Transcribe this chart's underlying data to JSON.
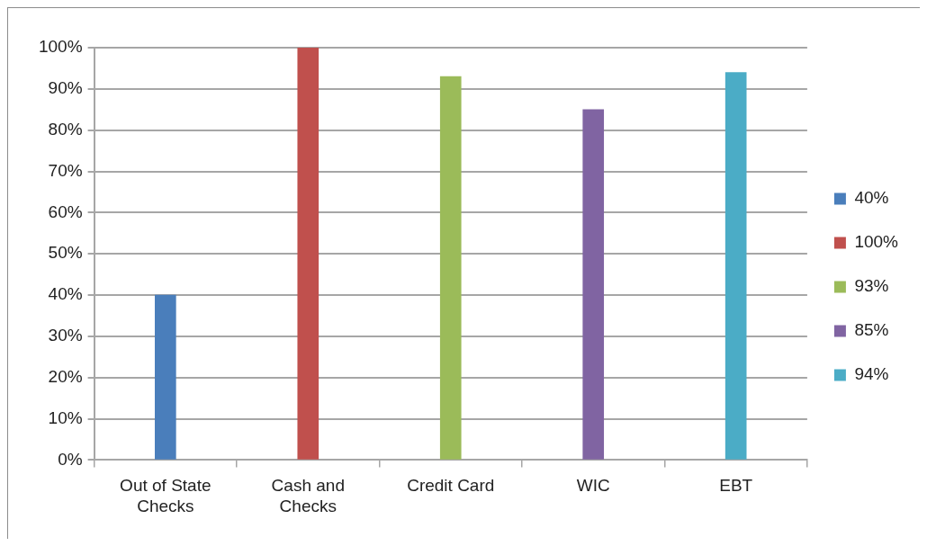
{
  "chart_data": {
    "type": "bar",
    "categories": [
      "Out of State Checks",
      "Cash and Checks",
      "Credit Card",
      "WIC",
      "EBT"
    ],
    "series": [
      {
        "name": "40%",
        "color": "#4a7ebb",
        "values": [
          40,
          null,
          null,
          null,
          null
        ]
      },
      {
        "name": "100%",
        "color": "#c0504d",
        "values": [
          null,
          100,
          null,
          null,
          null
        ]
      },
      {
        "name": "93%",
        "color": "#9bbb59",
        "values": [
          null,
          null,
          93,
          null,
          null
        ]
      },
      {
        "name": "85%",
        "color": "#8064a2",
        "values": [
          null,
          null,
          null,
          85,
          null
        ]
      },
      {
        "name": "94%",
        "color": "#4bacc6",
        "values": [
          null,
          null,
          null,
          null,
          94
        ]
      }
    ],
    "ylim": [
      0,
      100
    ],
    "yticks": [
      {
        "value": 0,
        "label": "0%"
      },
      {
        "value": 10,
        "label": "10%"
      },
      {
        "value": 20,
        "label": "20%"
      },
      {
        "value": 30,
        "label": "30%"
      },
      {
        "value": 40,
        "label": "40%"
      },
      {
        "value": 50,
        "label": "50%"
      },
      {
        "value": 60,
        "label": "60%"
      },
      {
        "value": 70,
        "label": "70%"
      },
      {
        "value": 80,
        "label": "80%"
      },
      {
        "value": 90,
        "label": "90%"
      },
      {
        "value": 100,
        "label": "100%"
      }
    ],
    "grid": "y",
    "legend": "right"
  }
}
